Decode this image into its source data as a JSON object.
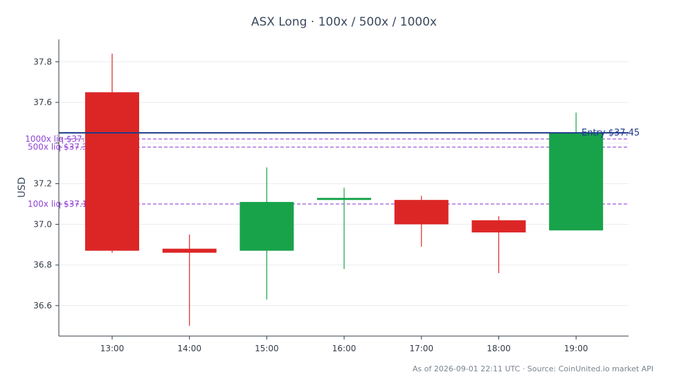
{
  "chart_data": {
    "type": "candlestick",
    "title": "ASX Long · 100x / 500x / 1000x",
    "ylabel": "USD",
    "xlabel": "",
    "ylim": [
      36.45,
      37.91
    ],
    "yticks": [
      36.6,
      36.8,
      37.0,
      37.2,
      37.4,
      37.6,
      37.8
    ],
    "ytick_labels": [
      "36.6",
      "36.8",
      "37.0",
      "37.2",
      "",
      "37.6",
      "37.8"
    ],
    "grid": true,
    "categories": [
      "13:00",
      "14:00",
      "15:00",
      "16:00",
      "17:00",
      "18:00",
      "19:00"
    ],
    "candles": [
      {
        "time": "13:00",
        "open": 37.65,
        "high": 37.84,
        "low": 36.86,
        "close": 36.87
      },
      {
        "time": "14:00",
        "open": 36.88,
        "high": 36.95,
        "low": 36.5,
        "close": 36.86
      },
      {
        "time": "15:00",
        "open": 36.87,
        "high": 37.28,
        "low": 36.63,
        "close": 37.11
      },
      {
        "time": "16:00",
        "open": 37.12,
        "high": 37.18,
        "low": 36.78,
        "close": 37.13
      },
      {
        "time": "17:00",
        "open": 37.12,
        "high": 37.14,
        "low": 36.89,
        "close": 37.0
      },
      {
        "time": "18:00",
        "open": 37.02,
        "high": 37.04,
        "low": 36.76,
        "close": 36.96
      },
      {
        "time": "19:00",
        "open": 36.97,
        "high": 37.55,
        "low": 36.97,
        "close": 37.45
      }
    ],
    "up_color": "#18a34a",
    "down_color": "#dc2626",
    "entry": {
      "value": 37.45,
      "label": "Entry $37.45",
      "color": "#1e3a8a"
    },
    "liquidation_lines": [
      {
        "value": 37.42,
        "label": "1000x liq $37.42",
        "color": "#7e22ce"
      },
      {
        "value": 37.38,
        "label": "500x liq $37.38",
        "color": "#7e22ce"
      },
      {
        "value": 37.1,
        "label": "100x liq $37.10",
        "color": "#7e22ce"
      }
    ]
  },
  "footer": {
    "text": "As of 2026-09-01 22:11 UTC · Source: CoinUnited.io market API"
  }
}
